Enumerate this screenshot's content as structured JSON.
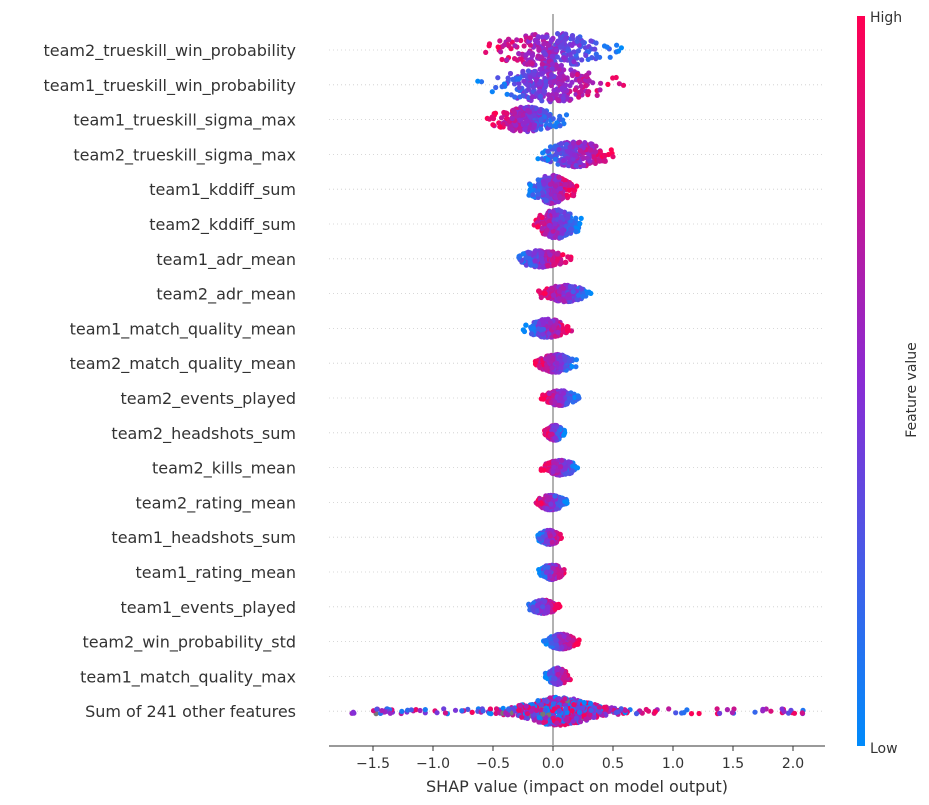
{
  "chart_data": {
    "type": "scatter",
    "subtype": "shap-beeswarm",
    "xlabel": "SHAP value (impact on model output)",
    "xlim": [
      -1.85,
      2.3
    ],
    "xticks": [
      -1.5,
      -1.0,
      -0.5,
      0.0,
      0.5,
      1.0,
      1.5,
      2.0
    ],
    "xtick_labels": [
      "−1.5",
      "−1.0",
      "−0.5",
      "0.0",
      "0.5",
      "1.0",
      "1.5",
      "2.0"
    ],
    "colorbar": {
      "label": "Feature value",
      "high_label": "High",
      "low_label": "Low",
      "high_color": "#ff0052",
      "mid_color": "#8a2bd4",
      "low_color": "#008bfb"
    },
    "missing_value_color": "#777777",
    "features": [
      {
        "name": "team2_trueskill_win_probability",
        "min": -0.6,
        "max": 0.58,
        "direction": "negative",
        "width": 1.0
      },
      {
        "name": "team1_trueskill_win_probability",
        "min": -0.65,
        "max": 0.6,
        "direction": "positive",
        "width": 1.0
      },
      {
        "name": "team1_trueskill_sigma_max",
        "min": -0.55,
        "max": 0.12,
        "direction": "negative",
        "width": 0.75
      },
      {
        "name": "team2_trueskill_sigma_max",
        "min": -0.15,
        "max": 0.52,
        "direction": "positive",
        "width": 0.75
      },
      {
        "name": "team1_kddiff_sum",
        "min": -0.22,
        "max": 0.2,
        "direction": "positive",
        "width": 0.85
      },
      {
        "name": "team2_kddiff_sum",
        "min": -0.18,
        "max": 0.25,
        "direction": "negative",
        "width": 0.85
      },
      {
        "name": "team1_adr_mean",
        "min": -0.35,
        "max": 0.15,
        "direction": "positive",
        "width": 0.5
      },
      {
        "name": "team2_adr_mean",
        "min": -0.13,
        "max": 0.33,
        "direction": "negative",
        "width": 0.5
      },
      {
        "name": "team1_match_quality_mean",
        "min": -0.25,
        "max": 0.17,
        "direction": "positive",
        "width": 0.55
      },
      {
        "name": "team2_match_quality_mean",
        "min": -0.15,
        "max": 0.2,
        "direction": "negative",
        "width": 0.55
      },
      {
        "name": "team2_events_played",
        "min": -0.1,
        "max": 0.22,
        "direction": "negative",
        "width": 0.45
      },
      {
        "name": "team2_headshots_sum",
        "min": -0.07,
        "max": 0.1,
        "direction": "negative",
        "width": 0.45
      },
      {
        "name": "team2_kills_mean",
        "min": -0.1,
        "max": 0.23,
        "direction": "negative",
        "width": 0.45
      },
      {
        "name": "team2_rating_mean",
        "min": -0.15,
        "max": 0.12,
        "direction": "negative",
        "width": 0.45
      },
      {
        "name": "team1_headshots_sum",
        "min": -0.13,
        "max": 0.07,
        "direction": "positive",
        "width": 0.45
      },
      {
        "name": "team1_rating_mean",
        "min": -0.12,
        "max": 0.1,
        "direction": "positive",
        "width": 0.45
      },
      {
        "name": "team1_events_played",
        "min": -0.22,
        "max": 0.06,
        "direction": "positive",
        "width": 0.4
      },
      {
        "name": "team2_win_probability_std",
        "min": -0.08,
        "max": 0.22,
        "direction": "positive",
        "width": 0.45
      },
      {
        "name": "team1_match_quality_max",
        "min": -0.07,
        "max": 0.15,
        "direction": "positive",
        "width": 0.5
      },
      {
        "name": "Sum of 241 other features",
        "min": -1.7,
        "max": 2.1,
        "direction": "mixed",
        "width": 1.0
      }
    ]
  }
}
